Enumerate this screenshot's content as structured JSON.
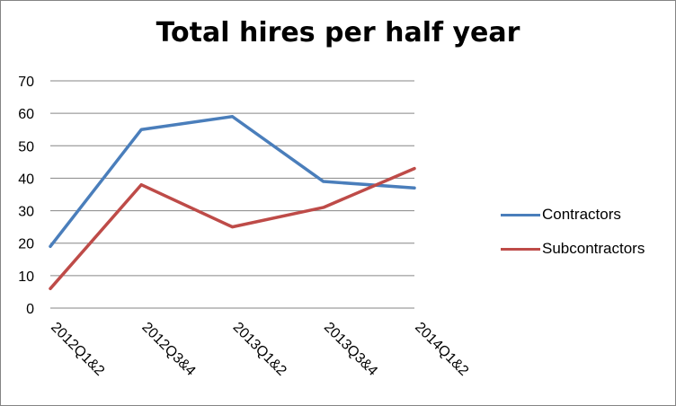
{
  "chart_data": {
    "type": "line",
    "title": "Total hires per half year",
    "xlabel": "",
    "ylabel": "",
    "categories": [
      "2012Q1&2",
      "2012Q3&4",
      "2013Q1&2",
      "2013Q3&4",
      "2014Q1&2"
    ],
    "series": [
      {
        "name": "Contractors",
        "color": "#4a7ebb",
        "values": [
          19,
          55,
          59,
          39,
          37
        ]
      },
      {
        "name": "Subcontractors",
        "color": "#be4b48",
        "values": [
          6,
          38,
          25,
          31,
          43
        ]
      }
    ],
    "ylim": [
      0,
      70
    ],
    "yticks": [
      0,
      10,
      20,
      30,
      40,
      50,
      60,
      70
    ],
    "grid": true,
    "legend_position": "right"
  }
}
